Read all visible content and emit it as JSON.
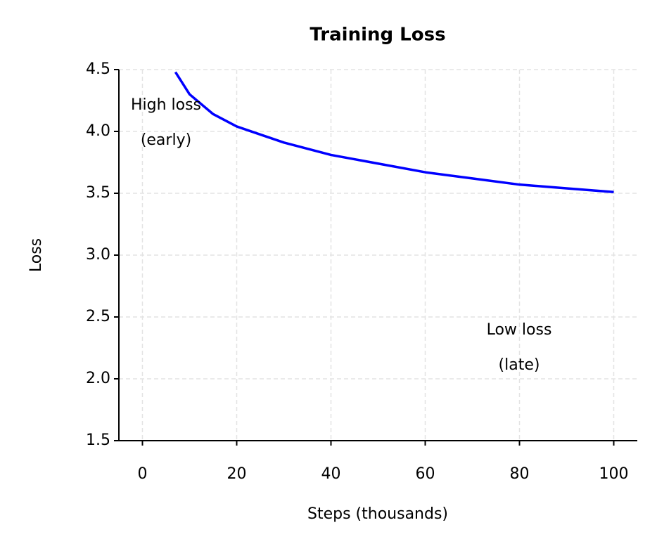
{
  "chart_data": {
    "type": "line",
    "title": "Training Loss",
    "x_label": "Steps (thousands)",
    "y_label": "Loss",
    "x": [
      7,
      10,
      15,
      20,
      30,
      40,
      50,
      60,
      70,
      80,
      90,
      100
    ],
    "series": [
      {
        "name": "Loss",
        "color": "#0000ff",
        "values": [
          4.48,
          4.3,
          4.14,
          4.04,
          3.91,
          3.81,
          3.74,
          3.67,
          3.62,
          3.57,
          3.54,
          3.51
        ]
      }
    ],
    "xlim": [
      -5,
      105
    ],
    "ylim": [
      1.5,
      4.5
    ],
    "xticks": [
      0,
      20,
      40,
      60,
      80,
      100
    ],
    "yticks": [
      1.5,
      {
        "value": 2,
        "label": "2.0"
      },
      2.5,
      {
        "value": 3,
        "label": "3.0"
      },
      3.5,
      {
        "value": 4,
        "label": "4.0"
      },
      4.5
    ],
    "grid": true,
    "annotations": [
      {
        "lines": [
          "High loss",
          "(early)"
        ]
      },
      {
        "lines": [
          "Low loss",
          "(late)"
        ]
      }
    ]
  }
}
